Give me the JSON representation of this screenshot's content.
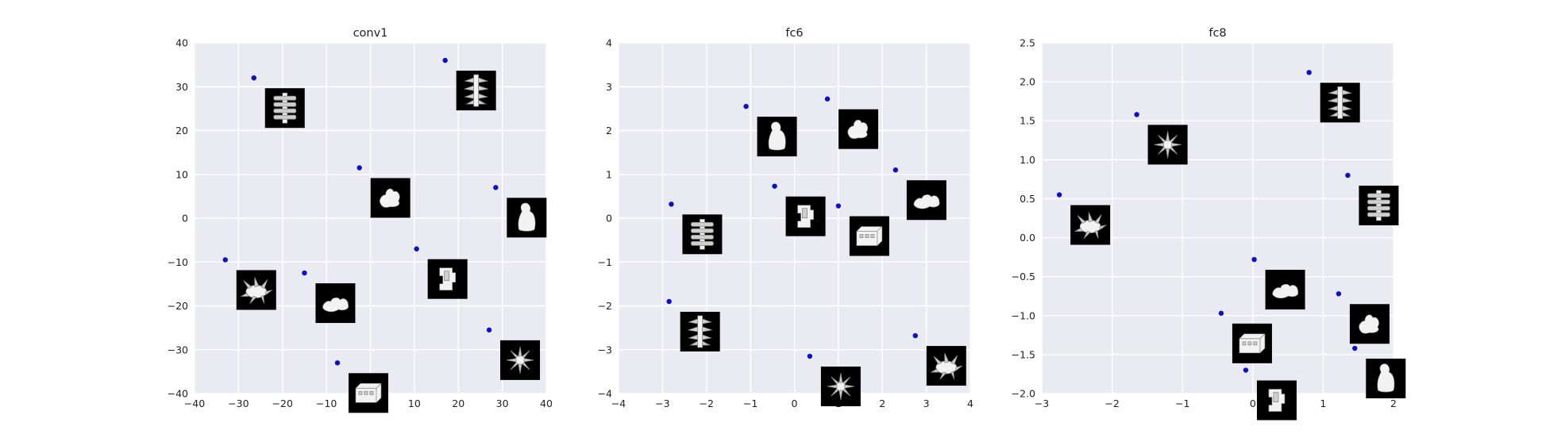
{
  "chart_data": [
    {
      "type": "scatter",
      "title": "conv1",
      "xlim": [
        -40,
        40
      ],
      "ylim": [
        -40,
        40
      ],
      "xticks": [
        -40,
        -30,
        -20,
        -10,
        0,
        10,
        20,
        30,
        40
      ],
      "yticks": [
        -40,
        -30,
        -20,
        -10,
        0,
        10,
        20,
        30,
        40
      ],
      "xtick_labels": [
        "−40",
        "−30",
        "−20",
        "−10",
        "0",
        "10",
        "20",
        "30",
        "40"
      ],
      "ytick_labels": [
        "−40",
        "−30",
        "−20",
        "−10",
        "0",
        "10",
        "20",
        "30",
        "40"
      ],
      "grid": true,
      "points": [
        {
          "x": -26.5,
          "y": 32,
          "object": "segmented-spine"
        },
        {
          "x": 17,
          "y": 36,
          "object": "spiky-column"
        },
        {
          "x": -2.5,
          "y": 11.5,
          "object": "blob"
        },
        {
          "x": 28.5,
          "y": 7,
          "object": "bust"
        },
        {
          "x": -33,
          "y": -9.5,
          "object": "spiky-cluster"
        },
        {
          "x": -15,
          "y": -12.5,
          "object": "flat-blob"
        },
        {
          "x": 10.5,
          "y": -7,
          "object": "blocky-shape"
        },
        {
          "x": 27,
          "y": -25.5,
          "object": "sea-urchin"
        },
        {
          "x": -7.5,
          "y": -33,
          "object": "brick"
        }
      ]
    },
    {
      "type": "scatter",
      "title": "fc6",
      "xlim": [
        -4,
        4
      ],
      "ylim": [
        -4,
        4
      ],
      "xticks": [
        -4,
        -3,
        -2,
        -1,
        0,
        1,
        2,
        3,
        4
      ],
      "yticks": [
        -4,
        -3,
        -2,
        -1,
        0,
        1,
        2,
        3,
        4
      ],
      "xtick_labels": [
        "−4",
        "−3",
        "−2",
        "−1",
        "0",
        "1",
        "2",
        "3",
        "4"
      ],
      "ytick_labels": [
        "−4",
        "−3",
        "−2",
        "−1",
        "0",
        "1",
        "2",
        "3",
        "4"
      ],
      "grid": true,
      "points": [
        {
          "x": -1.1,
          "y": 2.55,
          "object": "bust"
        },
        {
          "x": 0.75,
          "y": 2.72,
          "object": "blob"
        },
        {
          "x": -0.45,
          "y": 0.73,
          "object": "blocky-shape"
        },
        {
          "x": 2.3,
          "y": 1.1,
          "object": "flat-blob"
        },
        {
          "x": -2.8,
          "y": 0.32,
          "object": "segmented-spine"
        },
        {
          "x": 1.0,
          "y": 0.28,
          "object": "brick"
        },
        {
          "x": -2.85,
          "y": -1.9,
          "object": "spiky-column"
        },
        {
          "x": 0.35,
          "y": -3.15,
          "object": "sea-urchin"
        },
        {
          "x": 2.75,
          "y": -2.68,
          "object": "spiky-cluster"
        }
      ]
    },
    {
      "type": "scatter",
      "title": "fc8",
      "xlim": [
        -3,
        2
      ],
      "ylim": [
        -2.0,
        2.5
      ],
      "xticks": [
        -3,
        -2,
        -1,
        0,
        1,
        2
      ],
      "yticks": [
        -2.0,
        -1.5,
        -1.0,
        -0.5,
        0.0,
        0.5,
        1.0,
        1.5,
        2.0,
        2.5
      ],
      "xtick_labels": [
        "−3",
        "−2",
        "−1",
        "0",
        "1",
        "2"
      ],
      "ytick_labels": [
        "−2.0",
        "−1.5",
        "−1.0",
        "−0.5",
        "0.0",
        "0.5",
        "1.0",
        "1.5",
        "2.0",
        "2.5"
      ],
      "grid": true,
      "points": [
        {
          "x": 0.8,
          "y": 2.12,
          "object": "spiky-column"
        },
        {
          "x": -1.65,
          "y": 1.58,
          "object": "sea-urchin"
        },
        {
          "x": 1.35,
          "y": 0.8,
          "object": "segmented-spine"
        },
        {
          "x": -2.75,
          "y": 0.55,
          "object": "spiky-cluster"
        },
        {
          "x": 0.02,
          "y": -0.28,
          "object": "flat-blob"
        },
        {
          "x": 1.22,
          "y": -0.72,
          "object": "blob"
        },
        {
          "x": -0.45,
          "y": -0.97,
          "object": "brick"
        },
        {
          "x": 1.45,
          "y": -1.42,
          "object": "bust"
        },
        {
          "x": -0.1,
          "y": -1.7,
          "object": "blocky-shape"
        }
      ]
    }
  ]
}
